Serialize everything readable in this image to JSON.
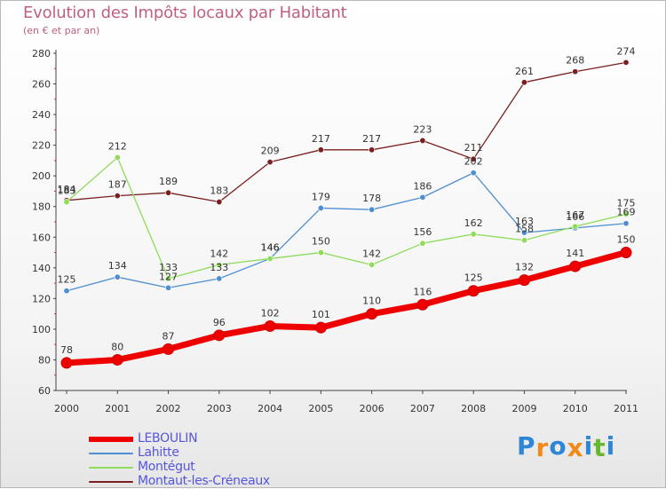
{
  "chart_data": {
    "type": "line",
    "title": "Evolution des Impôts locaux par Habitant",
    "subtitle": "(en € et par an)",
    "categories": [
      "2000",
      "2001",
      "2002",
      "2003",
      "2004",
      "2005",
      "2006",
      "2007",
      "2008",
      "2009",
      "2010",
      "2011"
    ],
    "ylim": [
      60,
      280
    ],
    "yticks": [
      60,
      80,
      100,
      120,
      140,
      160,
      180,
      200,
      220,
      240,
      260,
      280
    ],
    "grid": false,
    "legend_position": "bottom-left",
    "series": [
      {
        "name": "Montaut-les-Créneaux",
        "color": "#7a1f1f",
        "width": "thin",
        "values": [
          184,
          187,
          189,
          183,
          209,
          217,
          217,
          223,
          211,
          261,
          268,
          274
        ]
      },
      {
        "name": "Lahitte",
        "color": "#4e8fd0",
        "width": "thin",
        "values": [
          125,
          134,
          127,
          133,
          146,
          179,
          178,
          186,
          202,
          163,
          166,
          169
        ]
      },
      {
        "name": "Montégut",
        "color": "#8edc5a",
        "width": "thin",
        "values": [
          183,
          212,
          133,
          142,
          146,
          150,
          142,
          156,
          162,
          158,
          167,
          175
        ]
      },
      {
        "name": "LEBOULIN",
        "color": "#ee0000",
        "width": "thick",
        "values": [
          78,
          80,
          87,
          96,
          102,
          101,
          110,
          116,
          125,
          132,
          141,
          150
        ]
      }
    ]
  },
  "legend": [
    {
      "label": "LEBOULIN",
      "color": "#ee0000"
    },
    {
      "label": "Lahitte",
      "color": "#4e8fd0"
    },
    {
      "label": "Montégut",
      "color": "#8edc5a"
    },
    {
      "label": "Montaut-les-Créneaux",
      "color": "#7a1f1f"
    }
  ],
  "logo": {
    "letters": [
      "P",
      "r",
      "o",
      "x",
      "i",
      "t",
      "i"
    ],
    "colors": [
      "#2e86d6",
      "#f08a1c",
      "#2e86d6",
      "#f08a1c",
      "#2e86d6",
      "#66b82e",
      "#2e86d6"
    ]
  }
}
